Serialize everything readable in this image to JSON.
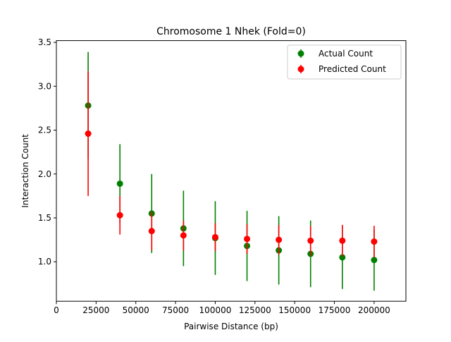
{
  "chart_data": {
    "type": "scatter",
    "title": "Chromosome 1 Nhek (Fold=0)",
    "xlabel": "Pairwise Distance (bp)",
    "ylabel": "Interaction Count",
    "xlim": [
      0,
      220000
    ],
    "ylim": [
      0.55,
      3.52
    ],
    "xticks": [
      0,
      25000,
      50000,
      75000,
      100000,
      125000,
      150000,
      175000,
      200000
    ],
    "xtick_labels": [
      "0",
      "25000",
      "50000",
      "75000",
      "100000",
      "125000",
      "150000",
      "175000",
      "200000"
    ],
    "yticks": [
      1.0,
      1.5,
      2.0,
      2.5,
      3.0,
      3.5
    ],
    "ytick_labels": [
      "1.0",
      "1.5",
      "2.0",
      "2.5",
      "3.0",
      "3.5"
    ],
    "grid": false,
    "legend_position": "top-right",
    "x": [
      20000,
      40000,
      60000,
      80000,
      100000,
      120000,
      140000,
      160000,
      180000,
      200000
    ],
    "series": [
      {
        "name": "Actual Count",
        "color": "#008000",
        "values": [
          2.78,
          1.89,
          1.55,
          1.38,
          1.27,
          1.18,
          1.13,
          1.09,
          1.05,
          1.02
        ],
        "error": [
          0.61,
          0.45,
          0.45,
          0.43,
          0.42,
          0.4,
          0.39,
          0.38,
          0.36,
          0.35
        ],
        "draw_order": 0
      },
      {
        "name": "Predicted Count",
        "color": "#ff0000",
        "values": [
          2.46,
          1.53,
          1.35,
          1.3,
          1.28,
          1.26,
          1.25,
          1.24,
          1.24,
          1.23
        ],
        "error": [
          0.71,
          0.22,
          0.22,
          0.17,
          0.16,
          0.17,
          0.17,
          0.17,
          0.18,
          0.18
        ],
        "draw_order": 1
      }
    ]
  }
}
